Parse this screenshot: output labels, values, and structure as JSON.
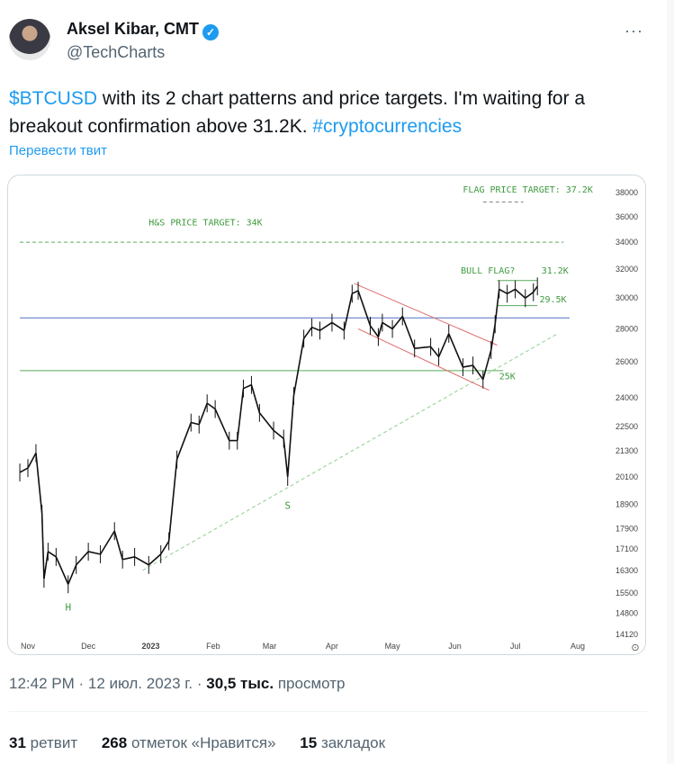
{
  "tweet": {
    "author_name": "Aksel Kibar, CMT",
    "handle": "@TechCharts",
    "verified": true,
    "more_icon": "ellipsis-icon",
    "text_cashtag": "$BTCUSD",
    "text_body": " with its 2 chart patterns and price targets. I'm waiting for a breakout confirmation above 31.2K. ",
    "text_hashtag": "#cryptocurrencies",
    "translate_label": "Перевести твит",
    "time": "12:42 PM",
    "date": "12 июл. 2023 г.",
    "views_count": "30,5 тыс.",
    "views_label": "просмотр",
    "retweets_count": "31",
    "retweets_label": "ретвит",
    "likes_count": "268",
    "likes_label": "отметок «Нравится»",
    "bookmarks_count": "15",
    "bookmarks_label": "закладок",
    "link_color": "#1d9bf0"
  },
  "chart_data": {
    "type": "line",
    "title": "",
    "y_scale": "log",
    "ylim": [
      14120,
      38000
    ],
    "y_ticks": [
      "38000",
      "36000",
      "34000",
      "32000",
      "30000",
      "28000",
      "26000",
      "24000",
      "22500",
      "21300",
      "20100",
      "18900",
      "17900",
      "17100",
      "16300",
      "15500",
      "14800",
      "14120"
    ],
    "x_ticks": [
      {
        "label": "Nov",
        "date": "2022-11-01"
      },
      {
        "label": "Dec",
        "date": "2022-12-01"
      },
      {
        "label": "2023",
        "date": "2023-01-01"
      },
      {
        "label": "Feb",
        "date": "2023-02-01"
      },
      {
        "label": "Mar",
        "date": "2023-03-01"
      },
      {
        "label": "Apr",
        "date": "2023-04-01"
      },
      {
        "label": "May",
        "date": "2023-05-01"
      },
      {
        "label": "Jun",
        "date": "2023-06-01"
      },
      {
        "label": "Jul",
        "date": "2023-07-01"
      },
      {
        "label": "Aug",
        "date": "2023-08-01"
      }
    ],
    "series": [
      {
        "values": [
          [
            "2022-10-28",
            20300
          ],
          [
            "2022-11-01",
            20500
          ],
          [
            "2022-11-05",
            21200
          ],
          [
            "2022-11-08",
            18500
          ],
          [
            "2022-11-09",
            16000
          ],
          [
            "2022-11-11",
            17000
          ],
          [
            "2022-11-15",
            16800
          ],
          [
            "2022-11-21",
            15800
          ],
          [
            "2022-11-25",
            16500
          ],
          [
            "2022-12-01",
            17000
          ],
          [
            "2022-12-07",
            16900
          ],
          [
            "2022-12-14",
            17800
          ],
          [
            "2022-12-18",
            16700
          ],
          [
            "2022-12-24",
            16800
          ],
          [
            "2022-12-31",
            16500
          ],
          [
            "2023-01-06",
            16900
          ],
          [
            "2023-01-10",
            17400
          ],
          [
            "2023-01-14",
            20900
          ],
          [
            "2023-01-21",
            22700
          ],
          [
            "2023-01-25",
            22600
          ],
          [
            "2023-01-29",
            23700
          ],
          [
            "2023-02-02",
            23400
          ],
          [
            "2023-02-09",
            21800
          ],
          [
            "2023-02-13",
            21800
          ],
          [
            "2023-02-16",
            24500
          ],
          [
            "2023-02-20",
            24700
          ],
          [
            "2023-02-24",
            23200
          ],
          [
            "2023-03-03",
            22300
          ],
          [
            "2023-03-08",
            21900
          ],
          [
            "2023-03-10",
            20100
          ],
          [
            "2023-03-13",
            24100
          ],
          [
            "2023-03-18",
            27400
          ],
          [
            "2023-03-22",
            28100
          ],
          [
            "2023-03-26",
            27900
          ],
          [
            "2023-04-01",
            28400
          ],
          [
            "2023-04-07",
            27900
          ],
          [
            "2023-04-11",
            30300
          ],
          [
            "2023-04-14",
            30500
          ],
          [
            "2023-04-20",
            28200
          ],
          [
            "2023-04-24",
            27500
          ],
          [
            "2023-04-26",
            28400
          ],
          [
            "2023-05-01",
            28000
          ],
          [
            "2023-05-06",
            28800
          ],
          [
            "2023-05-12",
            26800
          ],
          [
            "2023-05-20",
            26900
          ],
          [
            "2023-05-24",
            26300
          ],
          [
            "2023-05-29",
            27700
          ],
          [
            "2023-06-05",
            25700
          ],
          [
            "2023-06-10",
            25800
          ],
          [
            "2023-06-15",
            25000
          ],
          [
            "2023-06-19",
            26700
          ],
          [
            "2023-06-21",
            28300
          ],
          [
            "2023-06-23",
            30600
          ],
          [
            "2023-06-27",
            30300
          ],
          [
            "2023-07-01",
            30600
          ],
          [
            "2023-07-06",
            30000
          ],
          [
            "2023-07-10",
            30400
          ],
          [
            "2023-07-12",
            30800
          ]
        ]
      }
    ],
    "lines": [
      {
        "name": "hs-target-line",
        "type": "dashed",
        "color": "#5aaa5a",
        "from": [
          "2022-10-28",
          34000
        ],
        "to": [
          "2023-07-25",
          34000
        ]
      },
      {
        "name": "neckline",
        "type": "solid",
        "color": "#5aaa5a",
        "from": [
          "2022-10-28",
          25500
        ],
        "to": [
          "2023-06-25",
          25500
        ]
      },
      {
        "name": "resistance-line",
        "type": "solid",
        "color": "#5470c6",
        "from": [
          "2022-10-28",
          28700
        ],
        "to": [
          "2023-07-28",
          28700
        ]
      },
      {
        "name": "uptrend-line",
        "type": "dashed",
        "color": "#8fcf8f",
        "from": [
          "2022-12-28",
          16300
        ],
        "to": [
          "2023-07-22",
          27700
        ]
      },
      {
        "name": "channel-upper",
        "type": "solid",
        "color": "#e06a6a",
        "from": [
          "2023-04-12",
          31000
        ],
        "to": [
          "2023-06-22",
          27000
        ]
      },
      {
        "name": "channel-lower",
        "type": "solid",
        "color": "#e06a6a",
        "from": [
          "2023-04-14",
          28000
        ],
        "to": [
          "2023-06-18",
          24400
        ]
      },
      {
        "name": "flag-target-line",
        "type": "dashed",
        "color": "#888888",
        "from": [
          "2023-06-15",
          37200
        ],
        "to": [
          "2023-07-05",
          37200
        ]
      },
      {
        "name": "flag-top-line",
        "type": "solid",
        "color": "#5aaa5a",
        "from": [
          "2023-06-22",
          31200
        ],
        "to": [
          "2023-07-12",
          31200
        ]
      },
      {
        "name": "flag-bottom-line",
        "type": "solid",
        "color": "#5aaa5a",
        "from": [
          "2023-06-22",
          29500
        ],
        "to": [
          "2023-07-12",
          29500
        ]
      }
    ],
    "annotations": [
      {
        "text": "H&S PRICE TARGET: 34K",
        "date": "2022-12-31",
        "price": 35300
      },
      {
        "text": "FLAG PRICE TARGET: 37.2K",
        "date": "2023-06-05",
        "price": 38000
      },
      {
        "text": "BULL FLAG?",
        "date": "2023-06-04",
        "price": 31700
      },
      {
        "text": "31.2K",
        "date": "2023-07-14",
        "price": 31700
      },
      {
        "text": "29.5K",
        "date": "2023-07-13",
        "price": 29700
      },
      {
        "text": "25K",
        "date": "2023-06-23",
        "price": 25000
      },
      {
        "text": "S",
        "date": "2023-03-10",
        "price": 18700
      },
      {
        "text": "H",
        "date": "2022-11-21",
        "price": 14900
      }
    ],
    "settings_icon": "gear-icon"
  }
}
